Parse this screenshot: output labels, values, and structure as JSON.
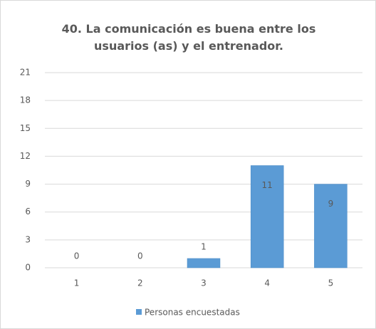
{
  "chart_data": {
    "type": "bar",
    "title": "40. La comunicación es buena entre los usuarios (as) y el entrenador.",
    "categories": [
      "1",
      "2",
      "3",
      "4",
      "5"
    ],
    "series": [
      {
        "name": "Personas encuestadas",
        "color": "#5b9bd5",
        "values": [
          0,
          0,
          1,
          11,
          9
        ]
      }
    ],
    "ylim": [
      0,
      21
    ],
    "yticks": [
      0,
      3,
      6,
      9,
      12,
      15,
      18,
      21
    ],
    "grid": true,
    "legend": "bottom"
  }
}
